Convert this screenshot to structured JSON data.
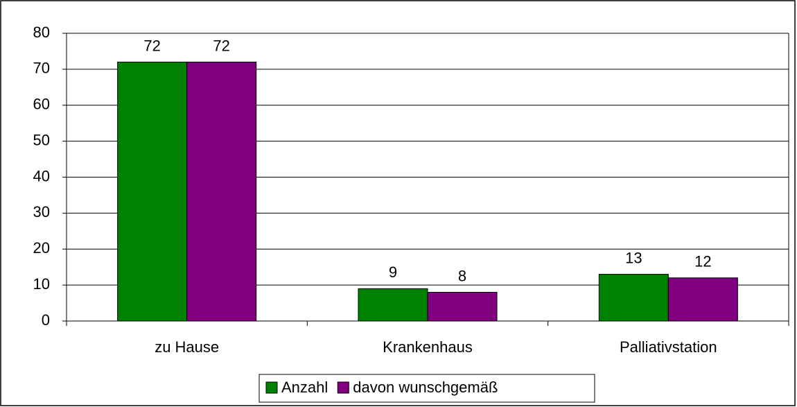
{
  "chart_data": {
    "type": "bar",
    "categories": [
      "zu Hause",
      "Krankenhaus",
      "Palliativstation"
    ],
    "series": [
      {
        "name": "Anzahl",
        "color": "#008000",
        "values": [
          72,
          9,
          13
        ]
      },
      {
        "name": "davon wunschgemäß",
        "color": "#800080",
        "values": [
          72,
          8,
          12
        ]
      }
    ],
    "ylim": [
      0,
      80
    ],
    "yticks": [
      0,
      10,
      20,
      30,
      40,
      50,
      60,
      70,
      80
    ],
    "grid": true,
    "legend": "bottom"
  }
}
